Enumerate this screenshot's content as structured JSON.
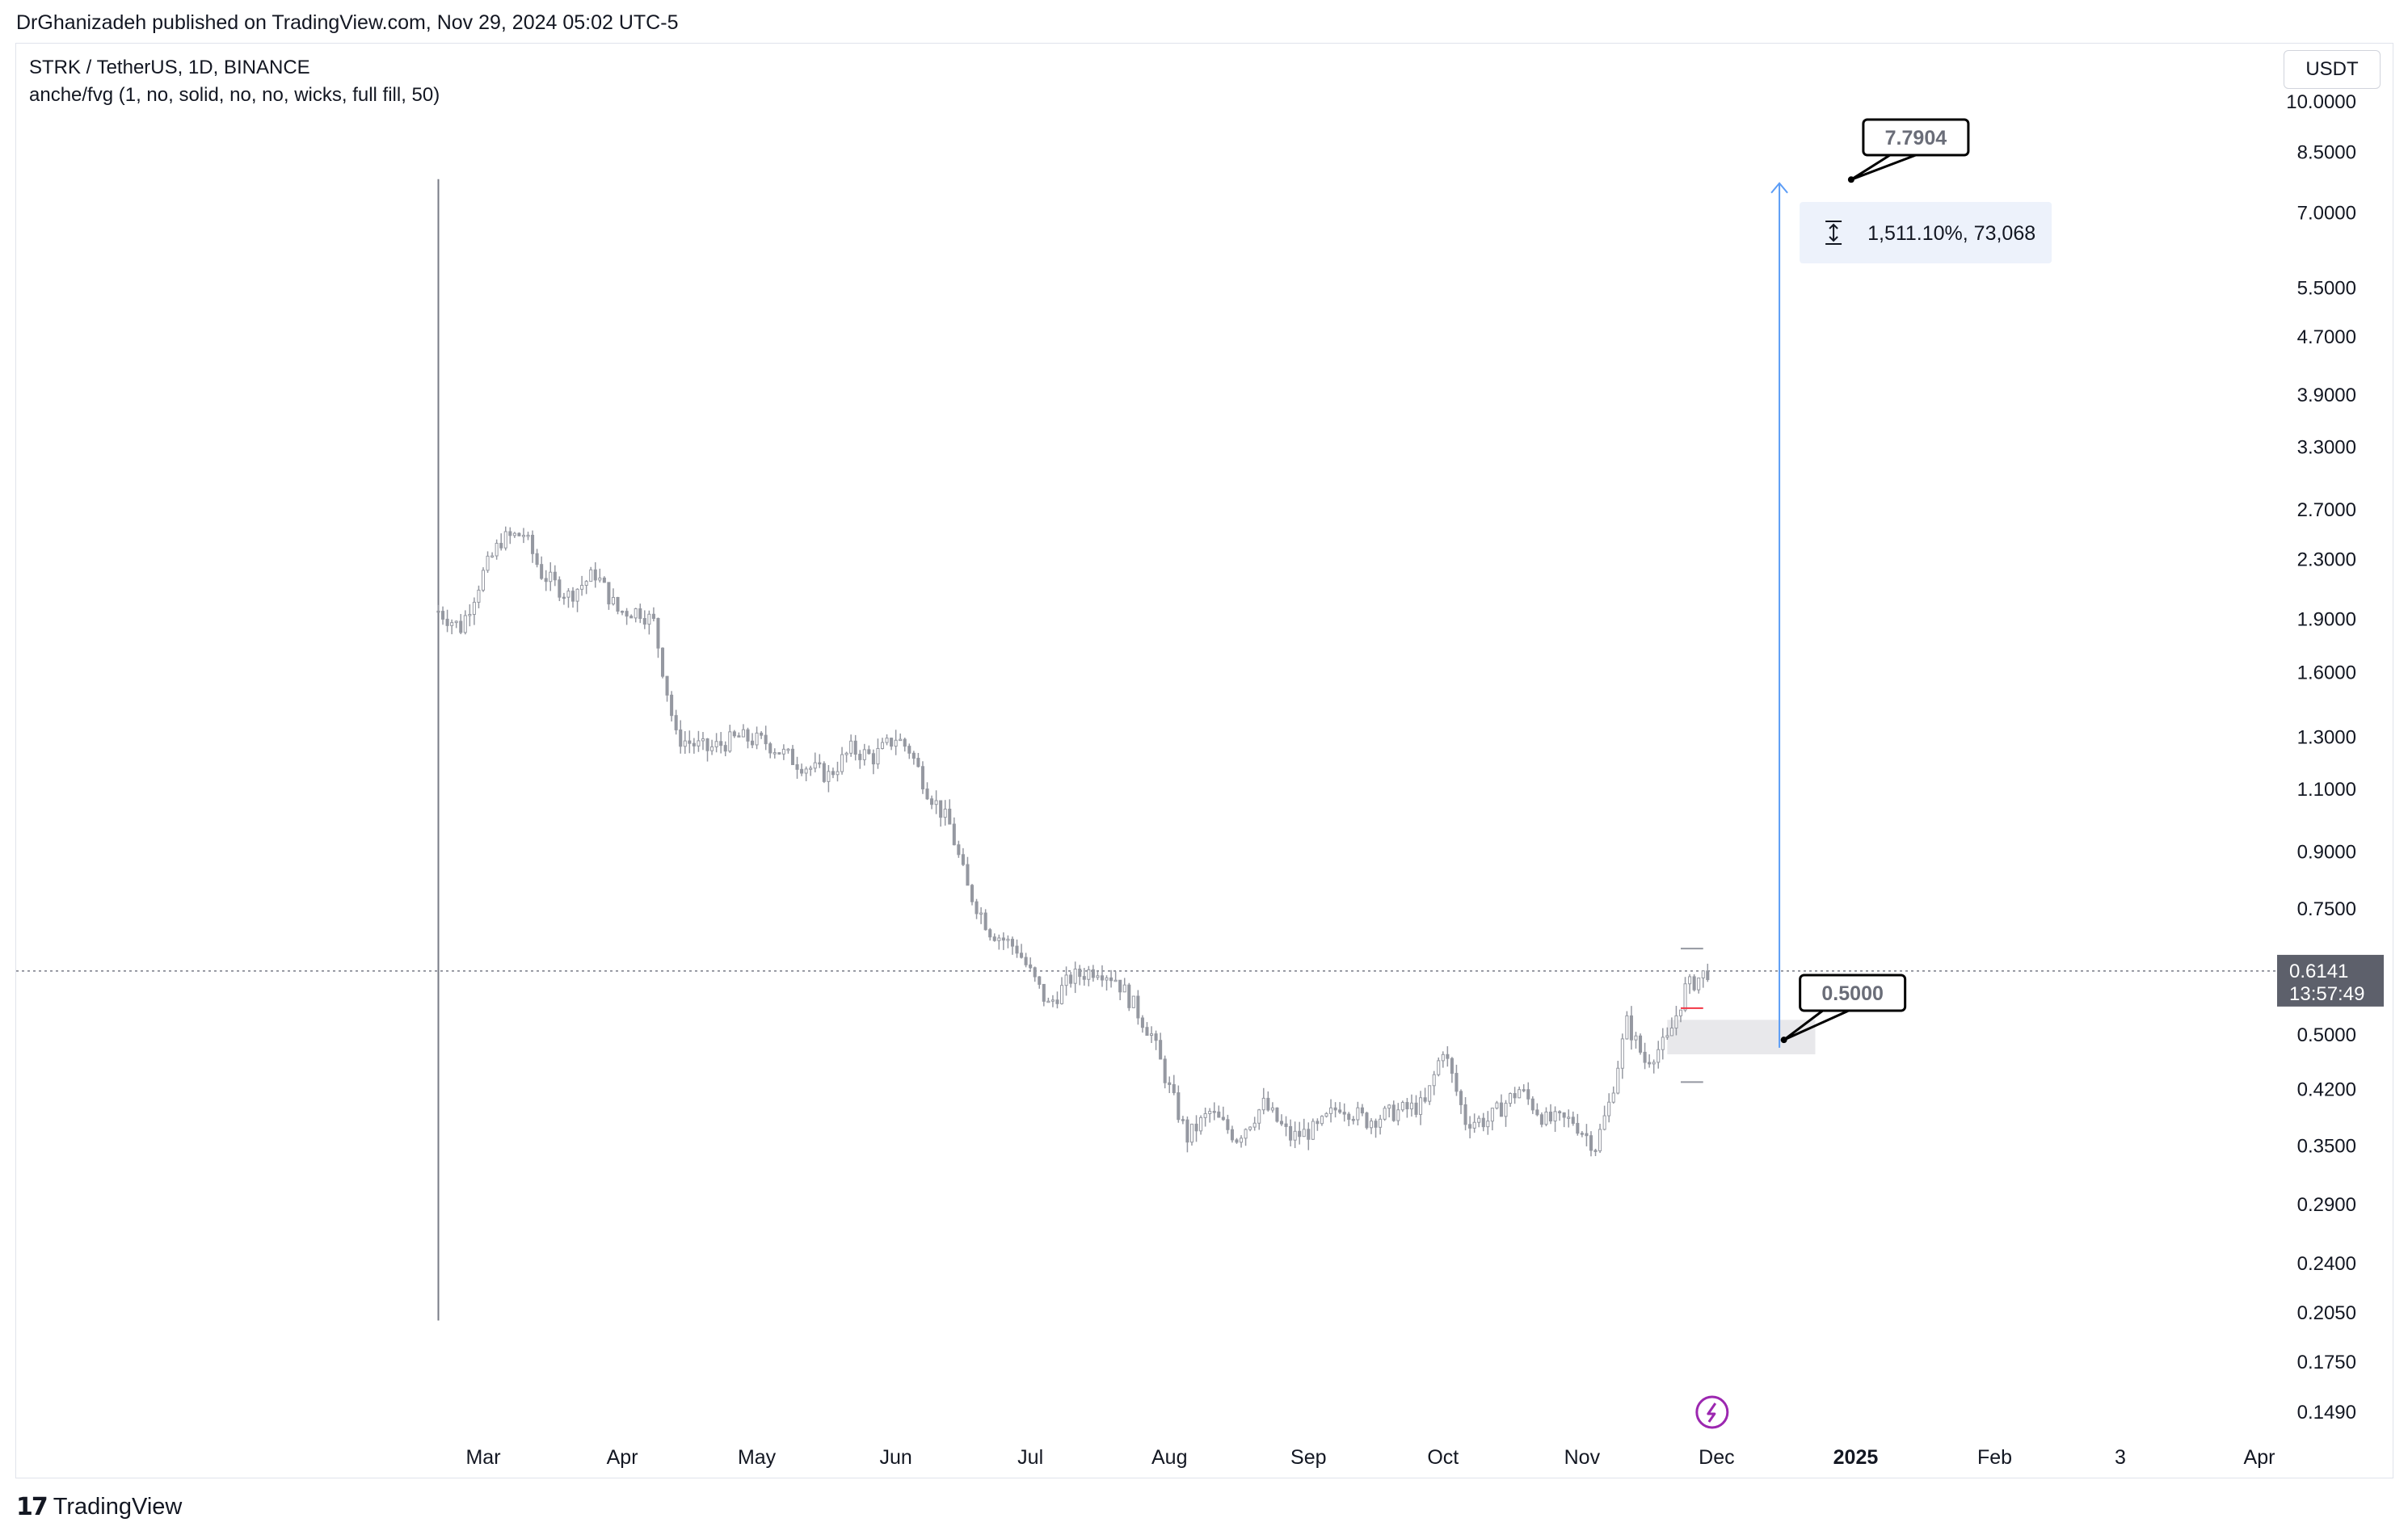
{
  "publish_info": "DrGhanizadeh published on TradingView.com, Nov 29, 2024 05:02 UTC-5",
  "brand": "TradingView",
  "chart_data": {
    "type": "candlestick",
    "symbol_line": "STRK / TetherUS, 1D, BINANCE",
    "indicator_line": "anche/fvg (1, no, solid, no, no, wicks, full fill, 50)",
    "currency": "USDT",
    "y_scale": "log",
    "y_ticks": [
      "10.0000",
      "8.5000",
      "7.0000",
      "5.5000",
      "4.7000",
      "3.9000",
      "3.3000",
      "2.7000",
      "2.3000",
      "1.9000",
      "1.6000",
      "1.3000",
      "1.1000",
      "0.9000",
      "0.7500",
      "0.5000",
      "0.4200",
      "0.3500",
      "0.2900",
      "0.2400",
      "0.2050",
      "0.1750",
      "0.1490"
    ],
    "x_ticks": [
      "Mar",
      "Apr",
      "May",
      "Jun",
      "Jul",
      "Aug",
      "Sep",
      "Oct",
      "Nov",
      "Dec",
      "2025",
      "Feb",
      "3",
      "Apr"
    ],
    "last_price": "0.6141",
    "countdown": "13:57:49",
    "target_label": "7.7904",
    "support_label": "0.5000",
    "measure_label": "1,511.10%, 73,068",
    "colors": {
      "candles": "#9598a1",
      "arrow": "#5b9cf6",
      "measure_bg": "#edf2fb",
      "fvg_zone": "#e8e8eb",
      "price_tag_bg": "#5d606b",
      "small_marker": "#f23645",
      "flash_icon": "#9c27b0"
    },
    "anchor_points": [
      {
        "date": "2024-02-20",
        "close": 1.95
      },
      {
        "date": "2024-02-25",
        "close": 1.85
      },
      {
        "date": "2024-03-01",
        "close": 2.2
      },
      {
        "date": "2024-03-05",
        "close": 2.45
      },
      {
        "date": "2024-03-10",
        "close": 2.5
      },
      {
        "date": "2024-03-14",
        "close": 2.2
      },
      {
        "date": "2024-03-20",
        "close": 2.05
      },
      {
        "date": "2024-03-26",
        "close": 2.2
      },
      {
        "date": "2024-03-31",
        "close": 1.95
      },
      {
        "date": "2024-04-05",
        "close": 1.95
      },
      {
        "date": "2024-04-08",
        "close": 1.88
      },
      {
        "date": "2024-04-13",
        "close": 1.3
      },
      {
        "date": "2024-04-20",
        "close": 1.25
      },
      {
        "date": "2024-04-27",
        "close": 1.3
      },
      {
        "date": "2024-05-03",
        "close": 1.28
      },
      {
        "date": "2024-05-10",
        "close": 1.2
      },
      {
        "date": "2024-05-17",
        "close": 1.15
      },
      {
        "date": "2024-05-22",
        "close": 1.25
      },
      {
        "date": "2024-05-27",
        "close": 1.22
      },
      {
        "date": "2024-06-01",
        "close": 1.3
      },
      {
        "date": "2024-06-04",
        "close": 1.25
      },
      {
        "date": "2024-06-08",
        "close": 1.1
      },
      {
        "date": "2024-06-13",
        "close": 0.98
      },
      {
        "date": "2024-06-17",
        "close": 0.8
      },
      {
        "date": "2024-06-22",
        "close": 0.7
      },
      {
        "date": "2024-06-28",
        "close": 0.66
      },
      {
        "date": "2024-07-05",
        "close": 0.55
      },
      {
        "date": "2024-07-10",
        "close": 0.6
      },
      {
        "date": "2024-07-16",
        "close": 0.62
      },
      {
        "date": "2024-07-20",
        "close": 0.6
      },
      {
        "date": "2024-07-24",
        "close": 0.55
      },
      {
        "date": "2024-07-28",
        "close": 0.5
      },
      {
        "date": "2024-08-01",
        "close": 0.42
      },
      {
        "date": "2024-08-05",
        "close": 0.36
      },
      {
        "date": "2024-08-10",
        "close": 0.39
      },
      {
        "date": "2024-08-16",
        "close": 0.36
      },
      {
        "date": "2024-08-22",
        "close": 0.4
      },
      {
        "date": "2024-08-28",
        "close": 0.36
      },
      {
        "date": "2024-09-03",
        "close": 0.37
      },
      {
        "date": "2024-09-08",
        "close": 0.4
      },
      {
        "date": "2024-09-14",
        "close": 0.38
      },
      {
        "date": "2024-09-20",
        "close": 0.39
      },
      {
        "date": "2024-09-27",
        "close": 0.4
      },
      {
        "date": "2024-10-01",
        "close": 0.48
      },
      {
        "date": "2024-10-06",
        "close": 0.38
      },
      {
        "date": "2024-10-11",
        "close": 0.38
      },
      {
        "date": "2024-10-18",
        "close": 0.42
      },
      {
        "date": "2024-10-24",
        "close": 0.38
      },
      {
        "date": "2024-10-30",
        "close": 0.38
      },
      {
        "date": "2024-11-04",
        "close": 0.35
      },
      {
        "date": "2024-11-07",
        "close": 0.4
      },
      {
        "date": "2024-11-11",
        "close": 0.52
      },
      {
        "date": "2024-11-15",
        "close": 0.46
      },
      {
        "date": "2024-11-20",
        "close": 0.49
      },
      {
        "date": "2024-11-24",
        "close": 0.58
      },
      {
        "date": "2024-11-29",
        "close": 0.6141
      }
    ]
  }
}
